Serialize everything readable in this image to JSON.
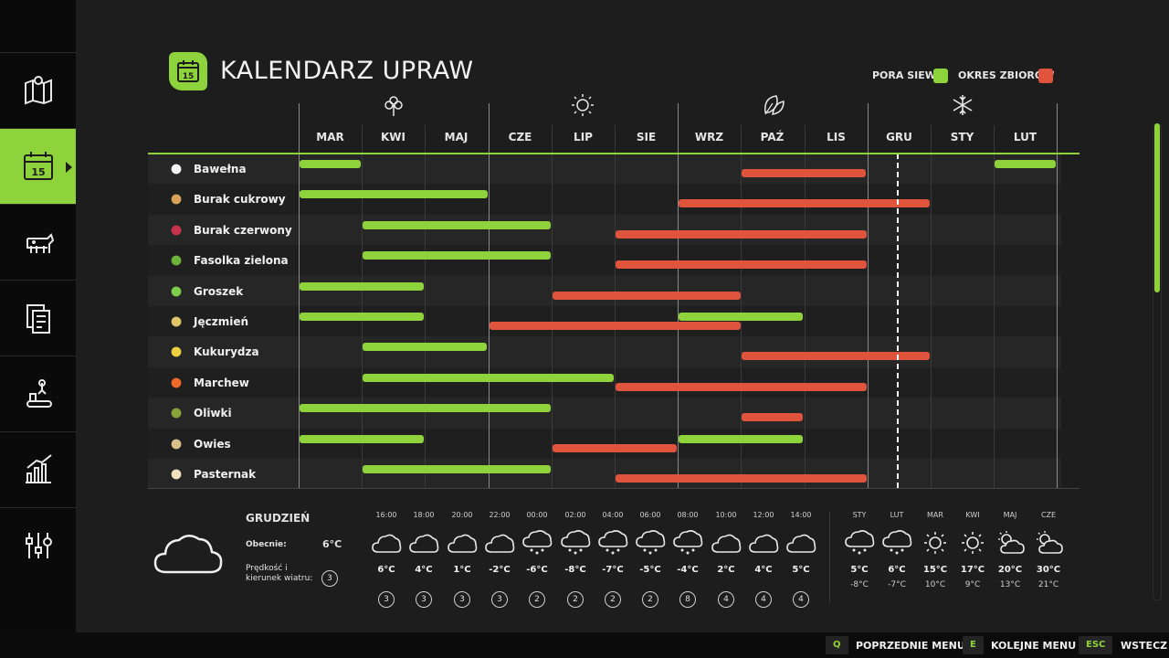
{
  "title": "KALENDARZ UPRAW",
  "title_icon_day": "15",
  "legend": {
    "sowing": "PORA SIEWU",
    "harvest": "OKRES ZBIORÓW",
    "sowing_color": "#8fd33c",
    "harvest_color": "#e0533c"
  },
  "sidebar": [
    {
      "icon": "map-icon"
    },
    {
      "icon": "calendar-icon",
      "day": "15",
      "active": true
    },
    {
      "icon": "cow-icon"
    },
    {
      "icon": "documents-icon"
    },
    {
      "icon": "production-icon"
    },
    {
      "icon": "stats-chart-icon"
    },
    {
      "icon": "settings-sliders-icon"
    }
  ],
  "months": [
    "MAR",
    "KWI",
    "MAJ",
    "CZE",
    "LIP",
    "SIE",
    "WRZ",
    "PAŹ",
    "LIS",
    "GRU",
    "STY",
    "LUT"
  ],
  "seasons": [
    "spring-flower-icon",
    "summer-sun-icon",
    "autumn-leaf-icon",
    "winter-snowflake-icon"
  ],
  "current_month_index": 9.47,
  "crops": [
    {
      "name": "Bawełna",
      "icon": "cotton-icon",
      "sow": [
        [
          0,
          1
        ],
        [
          11,
          12
        ]
      ],
      "harvest": [
        [
          7,
          9
        ]
      ]
    },
    {
      "name": "Burak cukrowy",
      "icon": "sugarbeet-icon",
      "sow": [
        [
          0,
          3
        ]
      ],
      "harvest": [
        [
          6,
          10
        ]
      ]
    },
    {
      "name": "Burak czerwony",
      "icon": "redbeet-icon",
      "sow": [
        [
          1,
          4
        ]
      ],
      "harvest": [
        [
          5,
          9
        ]
      ]
    },
    {
      "name": "Fasolka zielona",
      "icon": "greenbean-icon",
      "sow": [
        [
          1,
          4
        ]
      ],
      "harvest": [
        [
          5,
          9
        ]
      ]
    },
    {
      "name": "Groszek",
      "icon": "peas-icon",
      "sow": [
        [
          0,
          2
        ]
      ],
      "harvest": [
        [
          4,
          7
        ]
      ]
    },
    {
      "name": "Jęczmień",
      "icon": "barley-icon",
      "sow": [
        [
          0,
          2
        ],
        [
          6,
          8
        ]
      ],
      "harvest": [
        [
          3,
          7
        ]
      ]
    },
    {
      "name": "Kukurydza",
      "icon": "corn-icon",
      "sow": [
        [
          1,
          3
        ]
      ],
      "harvest": [
        [
          7,
          10
        ]
      ]
    },
    {
      "name": "Marchew",
      "icon": "carrot-icon",
      "sow": [
        [
          1,
          5
        ]
      ],
      "harvest": [
        [
          5,
          9
        ]
      ]
    },
    {
      "name": "Oliwki",
      "icon": "olives-icon",
      "sow": [
        [
          0,
          4
        ]
      ],
      "harvest": [
        [
          7,
          8
        ]
      ]
    },
    {
      "name": "Owies",
      "icon": "oats-icon",
      "sow": [
        [
          0,
          2
        ],
        [
          6,
          8
        ]
      ],
      "harvest": [
        [
          4,
          6
        ]
      ]
    },
    {
      "name": "Pasternak",
      "icon": "parsnip-icon",
      "sow": [
        [
          1,
          4
        ]
      ],
      "harvest": [
        [
          5,
          9
        ]
      ]
    }
  ],
  "weather": {
    "month": "GRUDZIEŃ",
    "current_label": "Obecnie:",
    "current_temp": "6°C",
    "wind_label_1": "Prędkość i",
    "wind_label_2": "kierunek wiatru:",
    "wind_now": "3",
    "hourly": [
      {
        "time": "16:00",
        "icon": "cloud",
        "temp": "6°C",
        "wind": "3"
      },
      {
        "time": "18:00",
        "icon": "cloud",
        "temp": "4°C",
        "wind": "3"
      },
      {
        "time": "20:00",
        "icon": "cloud",
        "temp": "1°C",
        "wind": "3"
      },
      {
        "time": "22:00",
        "icon": "cloud",
        "temp": "-2°C",
        "wind": "3"
      },
      {
        "time": "00:00",
        "icon": "snow",
        "temp": "-6°C",
        "wind": "2"
      },
      {
        "time": "02:00",
        "icon": "snow",
        "temp": "-8°C",
        "wind": "2"
      },
      {
        "time": "04:00",
        "icon": "snow",
        "temp": "-7°C",
        "wind": "2"
      },
      {
        "time": "06:00",
        "icon": "snow",
        "temp": "-5°C",
        "wind": "2"
      },
      {
        "time": "08:00",
        "icon": "snow",
        "temp": "-4°C",
        "wind": "8"
      },
      {
        "time": "10:00",
        "icon": "cloud",
        "temp": "2°C",
        "wind": "4"
      },
      {
        "time": "12:00",
        "icon": "cloud",
        "temp": "4°C",
        "wind": "4"
      },
      {
        "time": "14:00",
        "icon": "cloud",
        "temp": "5°C",
        "wind": "4"
      }
    ],
    "daily": [
      {
        "day": "STY",
        "icon": "snow",
        "high": "5°C",
        "low": "-8°C"
      },
      {
        "day": "LUT",
        "icon": "snow",
        "high": "6°C",
        "low": "-7°C"
      },
      {
        "day": "MAR",
        "icon": "sun",
        "high": "15°C",
        "low": "10°C"
      },
      {
        "day": "KWI",
        "icon": "sun",
        "high": "17°C",
        "low": "9°C"
      },
      {
        "day": "MAJ",
        "icon": "partly",
        "high": "20°C",
        "low": "13°C"
      },
      {
        "day": "CZE",
        "icon": "partly",
        "high": "30°C",
        "low": "21°C"
      }
    ]
  },
  "footer": [
    {
      "key": "Q",
      "label": "POPRZEDNIE MENU"
    },
    {
      "key": "E",
      "label": "KOLEJNE MENU"
    },
    {
      "key": "ESC",
      "label": "WSTECZ"
    }
  ]
}
